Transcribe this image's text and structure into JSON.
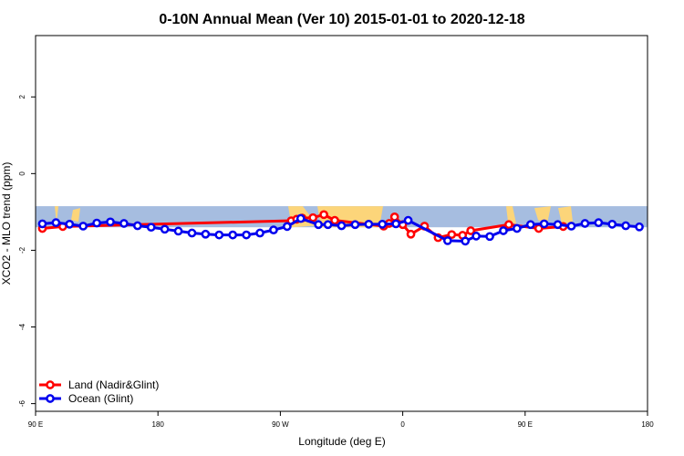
{
  "chart_data": {
    "type": "line",
    "title": "0-10N Annual Mean (Ver 10)   2015-01-01 to 2020-12-18",
    "xlabel": "Longitude (deg E)",
    "ylabel": "XCO2 - MLO trend (ppm)",
    "xlim": [
      90,
      540
    ],
    "ylim": [
      -6.2,
      3.6
    ],
    "x_ticks": [
      {
        "value": 90,
        "label": "90 E"
      },
      {
        "value": 180,
        "label": "180"
      },
      {
        "value": 270,
        "label": "90 W"
      },
      {
        "value": 360,
        "label": "0"
      },
      {
        "value": 450,
        "label": "90 E"
      },
      {
        "value": 540,
        "label": "180"
      }
    ],
    "y_ticks": [
      {
        "value": 2,
        "label": "2"
      },
      {
        "value": 0,
        "label": "0"
      },
      {
        "value": -2,
        "label": "-2"
      },
      {
        "value": -4,
        "label": "-4"
      },
      {
        "value": -6,
        "label": "-6"
      }
    ],
    "grid": false,
    "legend_position": "bottom-left",
    "map_band": {
      "y_top": -0.85,
      "y_bottom": -1.4,
      "ocean_color": "#a6bde0",
      "land_color": "#fcd57a"
    },
    "series": [
      {
        "name": "Land (Nadir&Glint)",
        "color": "#ff0000",
        "points": [
          {
            "x": 95,
            "y": -1.43
          },
          {
            "x": 110,
            "y": -1.38
          },
          {
            "x": 278,
            "y": -1.23
          },
          {
            "x": 282,
            "y": -1.19
          },
          {
            "x": 286,
            "y": -1.16
          },
          {
            "x": 294,
            "y": -1.15
          },
          {
            "x": 302,
            "y": -1.07
          },
          {
            "x": 310,
            "y": -1.22
          },
          {
            "x": 346,
            "y": -1.37
          },
          {
            "x": 350,
            "y": -1.3
          },
          {
            "x": 354,
            "y": -1.13
          },
          {
            "x": 360,
            "y": -1.33
          },
          {
            "x": 366,
            "y": -1.58
          },
          {
            "x": 376,
            "y": -1.37
          },
          {
            "x": 386,
            "y": -1.67
          },
          {
            "x": 396,
            "y": -1.59
          },
          {
            "x": 404,
            "y": -1.61
          },
          {
            "x": 410,
            "y": -1.49
          },
          {
            "x": 438,
            "y": -1.33
          },
          {
            "x": 460,
            "y": -1.43
          },
          {
            "x": 478,
            "y": -1.38
          }
        ]
      },
      {
        "name": "Ocean (Glint)",
        "color": "#0000ee",
        "points": [
          {
            "x": 95,
            "y": -1.31
          },
          {
            "x": 105,
            "y": -1.28
          },
          {
            "x": 115,
            "y": -1.32
          },
          {
            "x": 125,
            "y": -1.37
          },
          {
            "x": 135,
            "y": -1.29
          },
          {
            "x": 145,
            "y": -1.26
          },
          {
            "x": 155,
            "y": -1.3
          },
          {
            "x": 165,
            "y": -1.36
          },
          {
            "x": 175,
            "y": -1.4
          },
          {
            "x": 185,
            "y": -1.45
          },
          {
            "x": 195,
            "y": -1.5
          },
          {
            "x": 205,
            "y": -1.55
          },
          {
            "x": 215,
            "y": -1.58
          },
          {
            "x": 225,
            "y": -1.6
          },
          {
            "x": 235,
            "y": -1.6
          },
          {
            "x": 245,
            "y": -1.6
          },
          {
            "x": 255,
            "y": -1.55
          },
          {
            "x": 265,
            "y": -1.47
          },
          {
            "x": 275,
            "y": -1.38
          },
          {
            "x": 285,
            "y": -1.17
          },
          {
            "x": 298,
            "y": -1.33
          },
          {
            "x": 305,
            "y": -1.33
          },
          {
            "x": 315,
            "y": -1.36
          },
          {
            "x": 325,
            "y": -1.33
          },
          {
            "x": 335,
            "y": -1.32
          },
          {
            "x": 345,
            "y": -1.32
          },
          {
            "x": 355,
            "y": -1.31
          },
          {
            "x": 364,
            "y": -1.22
          },
          {
            "x": 393,
            "y": -1.75
          },
          {
            "x": 406,
            "y": -1.76
          },
          {
            "x": 414,
            "y": -1.63
          },
          {
            "x": 424,
            "y": -1.64
          },
          {
            "x": 434,
            "y": -1.49
          },
          {
            "x": 444,
            "y": -1.43
          },
          {
            "x": 454,
            "y": -1.33
          },
          {
            "x": 464,
            "y": -1.31
          },
          {
            "x": 474,
            "y": -1.33
          },
          {
            "x": 484,
            "y": -1.37
          },
          {
            "x": 494,
            "y": -1.3
          },
          {
            "x": 504,
            "y": -1.28
          },
          {
            "x": 514,
            "y": -1.32
          },
          {
            "x": 524,
            "y": -1.36
          },
          {
            "x": 534,
            "y": -1.39
          }
        ]
      }
    ]
  }
}
